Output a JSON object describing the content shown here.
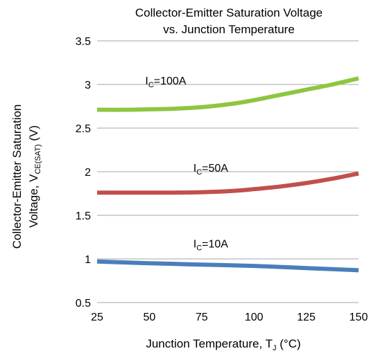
{
  "chart_data": {
    "type": "line",
    "title_line1": "Collector-Emitter Saturation Voltage",
    "title_line2": "vs. Junction Temperature",
    "xlabel": {
      "main": "Junction Temperature, T",
      "sub": "J",
      "tail": " (°C)"
    },
    "ylabel": {
      "line1": "Collector-Emitter Saturation",
      "line2_main": "Voltage, V",
      "line2_sub": "CE(SAT)",
      "line2_tail": " (V)"
    },
    "xlim": [
      25,
      150
    ],
    "ylim": [
      0.5,
      3.5
    ],
    "xticks": [
      25,
      50,
      75,
      100,
      125,
      150
    ],
    "yticks": [
      0.5,
      1,
      1.5,
      2,
      2.5,
      3,
      3.5
    ],
    "ytick_labels": [
      "0.5",
      "1",
      "1.5",
      "2",
      "2.5",
      "3",
      "3.5"
    ],
    "grid": "horizontal",
    "series": [
      {
        "name": "IC=100A",
        "label_main": "I",
        "label_sub": "C",
        "label_tail": "=100A",
        "color": "#8DC63F",
        "label_at": [
          48,
          3.0
        ],
        "x": [
          25,
          40,
          50,
          60,
          75,
          90,
          100,
          112.5,
          125,
          137.5,
          150
        ],
        "y": [
          2.71,
          2.71,
          2.715,
          2.72,
          2.74,
          2.78,
          2.82,
          2.88,
          2.94,
          3.0,
          3.07
        ]
      },
      {
        "name": "IC=50A",
        "label_main": "I",
        "label_sub": "C",
        "label_tail": "=50A",
        "color": "#C0504D",
        "label_at": [
          71,
          2.0
        ],
        "x": [
          25,
          40,
          50,
          60,
          75,
          90,
          100,
          112.5,
          125,
          137.5,
          150
        ],
        "y": [
          1.76,
          1.76,
          1.76,
          1.76,
          1.765,
          1.78,
          1.8,
          1.83,
          1.87,
          1.92,
          1.98
        ]
      },
      {
        "name": "IC=10A",
        "label_main": "I",
        "label_sub": "C",
        "label_tail": "=10A",
        "color": "#4A7EBB",
        "label_at": [
          71,
          1.13
        ],
        "x": [
          25,
          50,
          75,
          100,
          125,
          150
        ],
        "y": [
          0.97,
          0.95,
          0.935,
          0.92,
          0.895,
          0.87
        ]
      }
    ]
  }
}
